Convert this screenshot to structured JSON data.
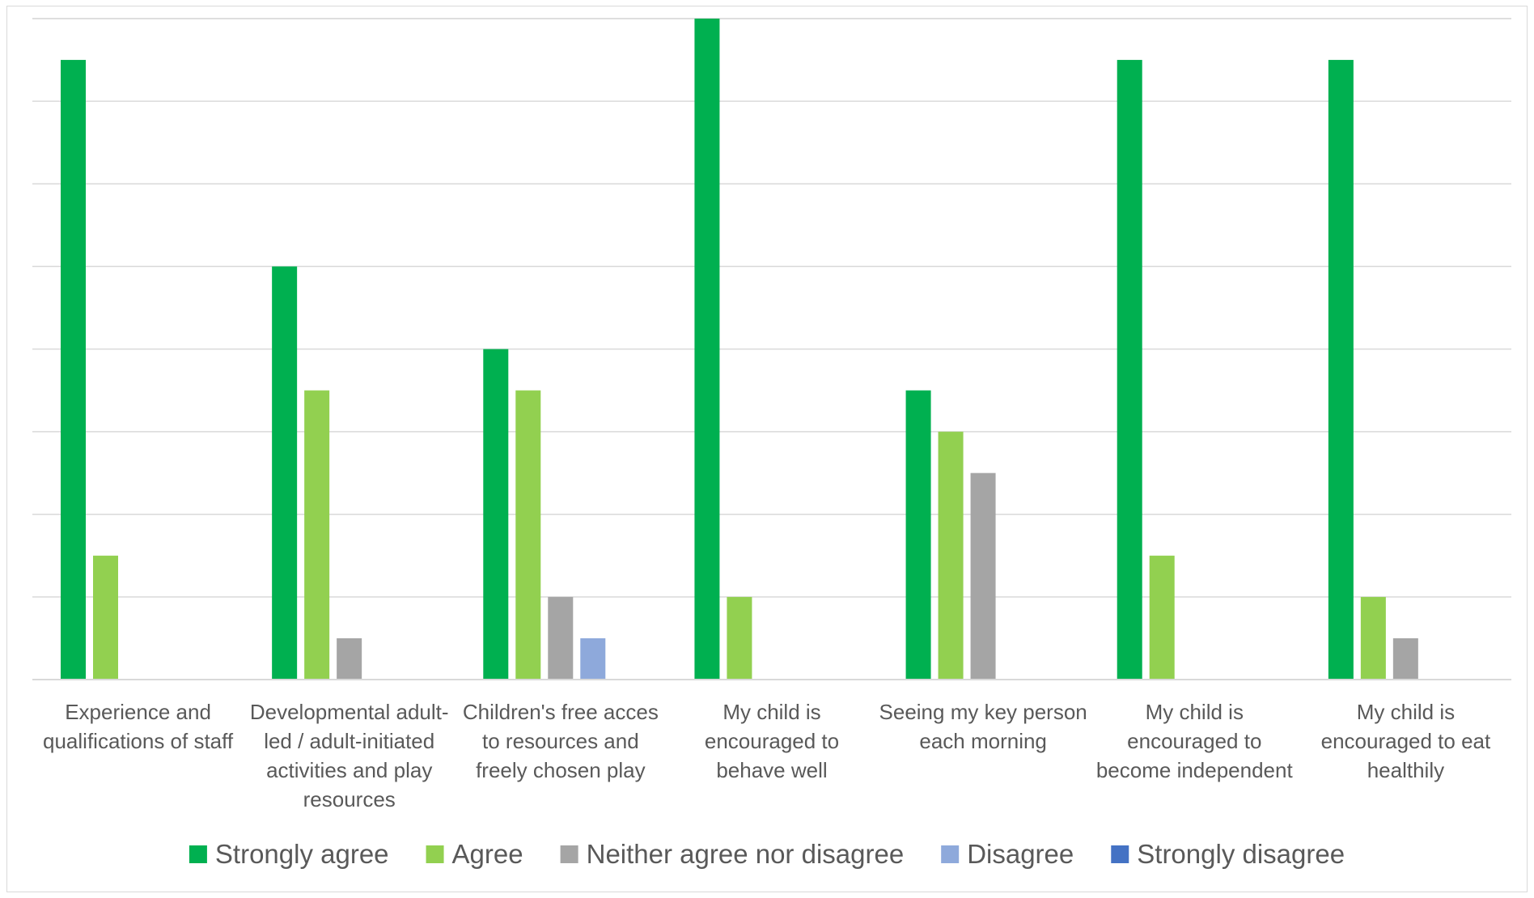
{
  "chart_data": {
    "type": "bar",
    "title": "",
    "xlabel": "",
    "ylabel": "",
    "ylim": [
      0,
      16
    ],
    "y_grid_step": 2,
    "y_tick_labels_visible": false,
    "grid": true,
    "legend_position": "bottom",
    "categories": [
      [
        "Experience and",
        "qualifications of staff"
      ],
      [
        "Developmental adult-",
        "led / adult-initiated",
        "activities and play",
        "resources"
      ],
      [
        "Children's free acces",
        "to resources and",
        "freely chosen play"
      ],
      [
        "My child is",
        "encouraged to",
        "behave well"
      ],
      [
        "Seeing my key person",
        "each morning"
      ],
      [
        "My child is",
        "encouraged to",
        "become independent"
      ],
      [
        "My child is",
        "encouraged to eat",
        "healthily"
      ]
    ],
    "series": [
      {
        "name": "Strongly agree",
        "color": "#00B050",
        "values": [
          15,
          10,
          8,
          16,
          7,
          15,
          15
        ]
      },
      {
        "name": "Agree",
        "color": "#92D050",
        "values": [
          3,
          7,
          7,
          2,
          6,
          3,
          2
        ]
      },
      {
        "name": "Neither agree nor disagree",
        "color": "#A5A5A5",
        "values": [
          0,
          1,
          2,
          0,
          5,
          0,
          1
        ]
      },
      {
        "name": "Disagree",
        "color": "#8EA9DB",
        "values": [
          0,
          0,
          1,
          0,
          0,
          0,
          0
        ]
      },
      {
        "name": "Strongly disagree",
        "color": "#4472C4",
        "values": [
          0,
          0,
          0,
          0,
          0,
          0,
          0
        ]
      }
    ]
  }
}
